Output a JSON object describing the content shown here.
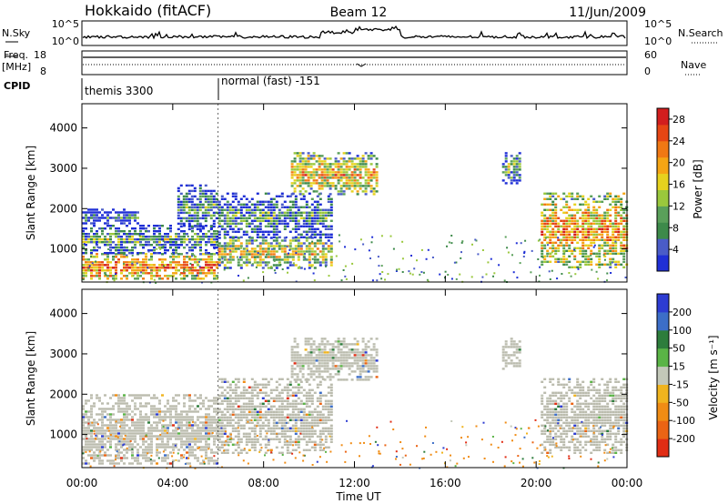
{
  "header": {
    "station": "Hokkaido (fitACF)",
    "beam": "Beam 12",
    "date": "11/Jun/2009"
  },
  "strips": {
    "nsky": {
      "label": "N.Sky",
      "right_label": "N.Search",
      "ticks_left": [
        "10^5",
        "10^0"
      ],
      "ticks_right": [
        "10^5",
        "10^0"
      ]
    },
    "freq": {
      "label_top": "Freq.",
      "label_bottom": "[MHz]",
      "ticks_left": [
        "18",
        "8"
      ],
      "right_label": "Nave",
      "ticks_right": [
        "60",
        "0"
      ]
    },
    "cpid": {
      "label": "CPID",
      "modes": [
        {
          "name": "themis 3300",
          "start_hour": 0
        },
        {
          "name": "normal (fast) -151",
          "start_hour": 6
        }
      ]
    }
  },
  "colors": {
    "power_scale": [
      "#1f2fd6",
      "#4a5cc8",
      "#3d8a4a",
      "#5aa05a",
      "#9ac83c",
      "#e6d21e",
      "#f5a514",
      "#f07814",
      "#e64614",
      "#d21e1e"
    ],
    "velocity_scale": [
      "#2d3cd2",
      "#3c6ec8",
      "#2d7d3c",
      "#5ab446",
      "#c3c8b9",
      "#f0b41e",
      "#f08c14",
      "#eb6414",
      "#e12d14"
    ],
    "ground_scatter": "#bbbcae"
  },
  "chart_data": [
    {
      "type": "heatmap",
      "name": "power",
      "xlabel": "Time UT",
      "ylabel": "Slant Range [km]",
      "x_ticks": [
        "00:00",
        "04:00",
        "08:00",
        "12:00",
        "16:00",
        "20:00",
        "00:00"
      ],
      "xlim_hours": [
        0,
        24
      ],
      "y_ticks": [
        1000,
        2000,
        3000,
        4000
      ],
      "ylim_km": [
        180,
        4600
      ],
      "colorbar": {
        "label": "Power [dB]",
        "ticks": [
          4,
          8,
          12,
          16,
          20,
          24,
          28
        ],
        "range": [
          0,
          30
        ]
      },
      "regions": [
        {
          "t0": 0,
          "t1": 6,
          "r0": 250,
          "r1": 900,
          "level": 0.8
        },
        {
          "t0": 0,
          "t1": 6,
          "r0": 900,
          "r1": 1600,
          "level": 0.35
        },
        {
          "t0": 0,
          "t1": 2.5,
          "r0": 1600,
          "r1": 2000,
          "level": 0.2
        },
        {
          "t0": 4.2,
          "t1": 6,
          "r0": 1500,
          "r1": 2600,
          "level": 0.3
        },
        {
          "t0": 6,
          "t1": 11,
          "r0": 550,
          "r1": 1300,
          "level": 0.6
        },
        {
          "t0": 6,
          "t1": 11,
          "r0": 1300,
          "r1": 2400,
          "level": 0.3
        },
        {
          "t0": 9.2,
          "t1": 13,
          "r0": 2350,
          "r1": 3400,
          "level": 0.65
        },
        {
          "t0": 18.5,
          "t1": 19.3,
          "r0": 2600,
          "r1": 3400,
          "level": 0.4
        },
        {
          "t0": 20.2,
          "t1": 24,
          "r0": 550,
          "r1": 2400,
          "level": 0.72
        }
      ]
    },
    {
      "type": "heatmap",
      "name": "velocity",
      "xlabel": "Time UT",
      "ylabel": "Slant Range [km]",
      "x_ticks": [
        "00:00",
        "04:00",
        "08:00",
        "12:00",
        "16:00",
        "20:00",
        "00:00"
      ],
      "xlim_hours": [
        0,
        24
      ],
      "y_ticks": [
        1000,
        2000,
        3000,
        4000
      ],
      "ylim_km": [
        180,
        4600
      ],
      "colorbar": {
        "label": "Velocity [m s⁻¹]",
        "ticks": [
          "200",
          "100",
          "50",
          "15",
          "-15",
          "-50",
          "-100",
          "-200"
        ],
        "range": [
          -250,
          250
        ]
      },
      "regions": [
        {
          "t0": 0,
          "t1": 6,
          "r0": 250,
          "r1": 2000,
          "level": 0
        },
        {
          "t0": 6,
          "t1": 11,
          "r0": 550,
          "r1": 2400,
          "level": 0
        },
        {
          "t0": 9.2,
          "t1": 13,
          "r0": 2350,
          "r1": 3400,
          "level": 0
        },
        {
          "t0": 18.5,
          "t1": 19.3,
          "r0": 2600,
          "r1": 3400,
          "level": 0
        },
        {
          "t0": 20.2,
          "t1": 24,
          "r0": 550,
          "r1": 2400,
          "level": 0
        }
      ]
    }
  ]
}
